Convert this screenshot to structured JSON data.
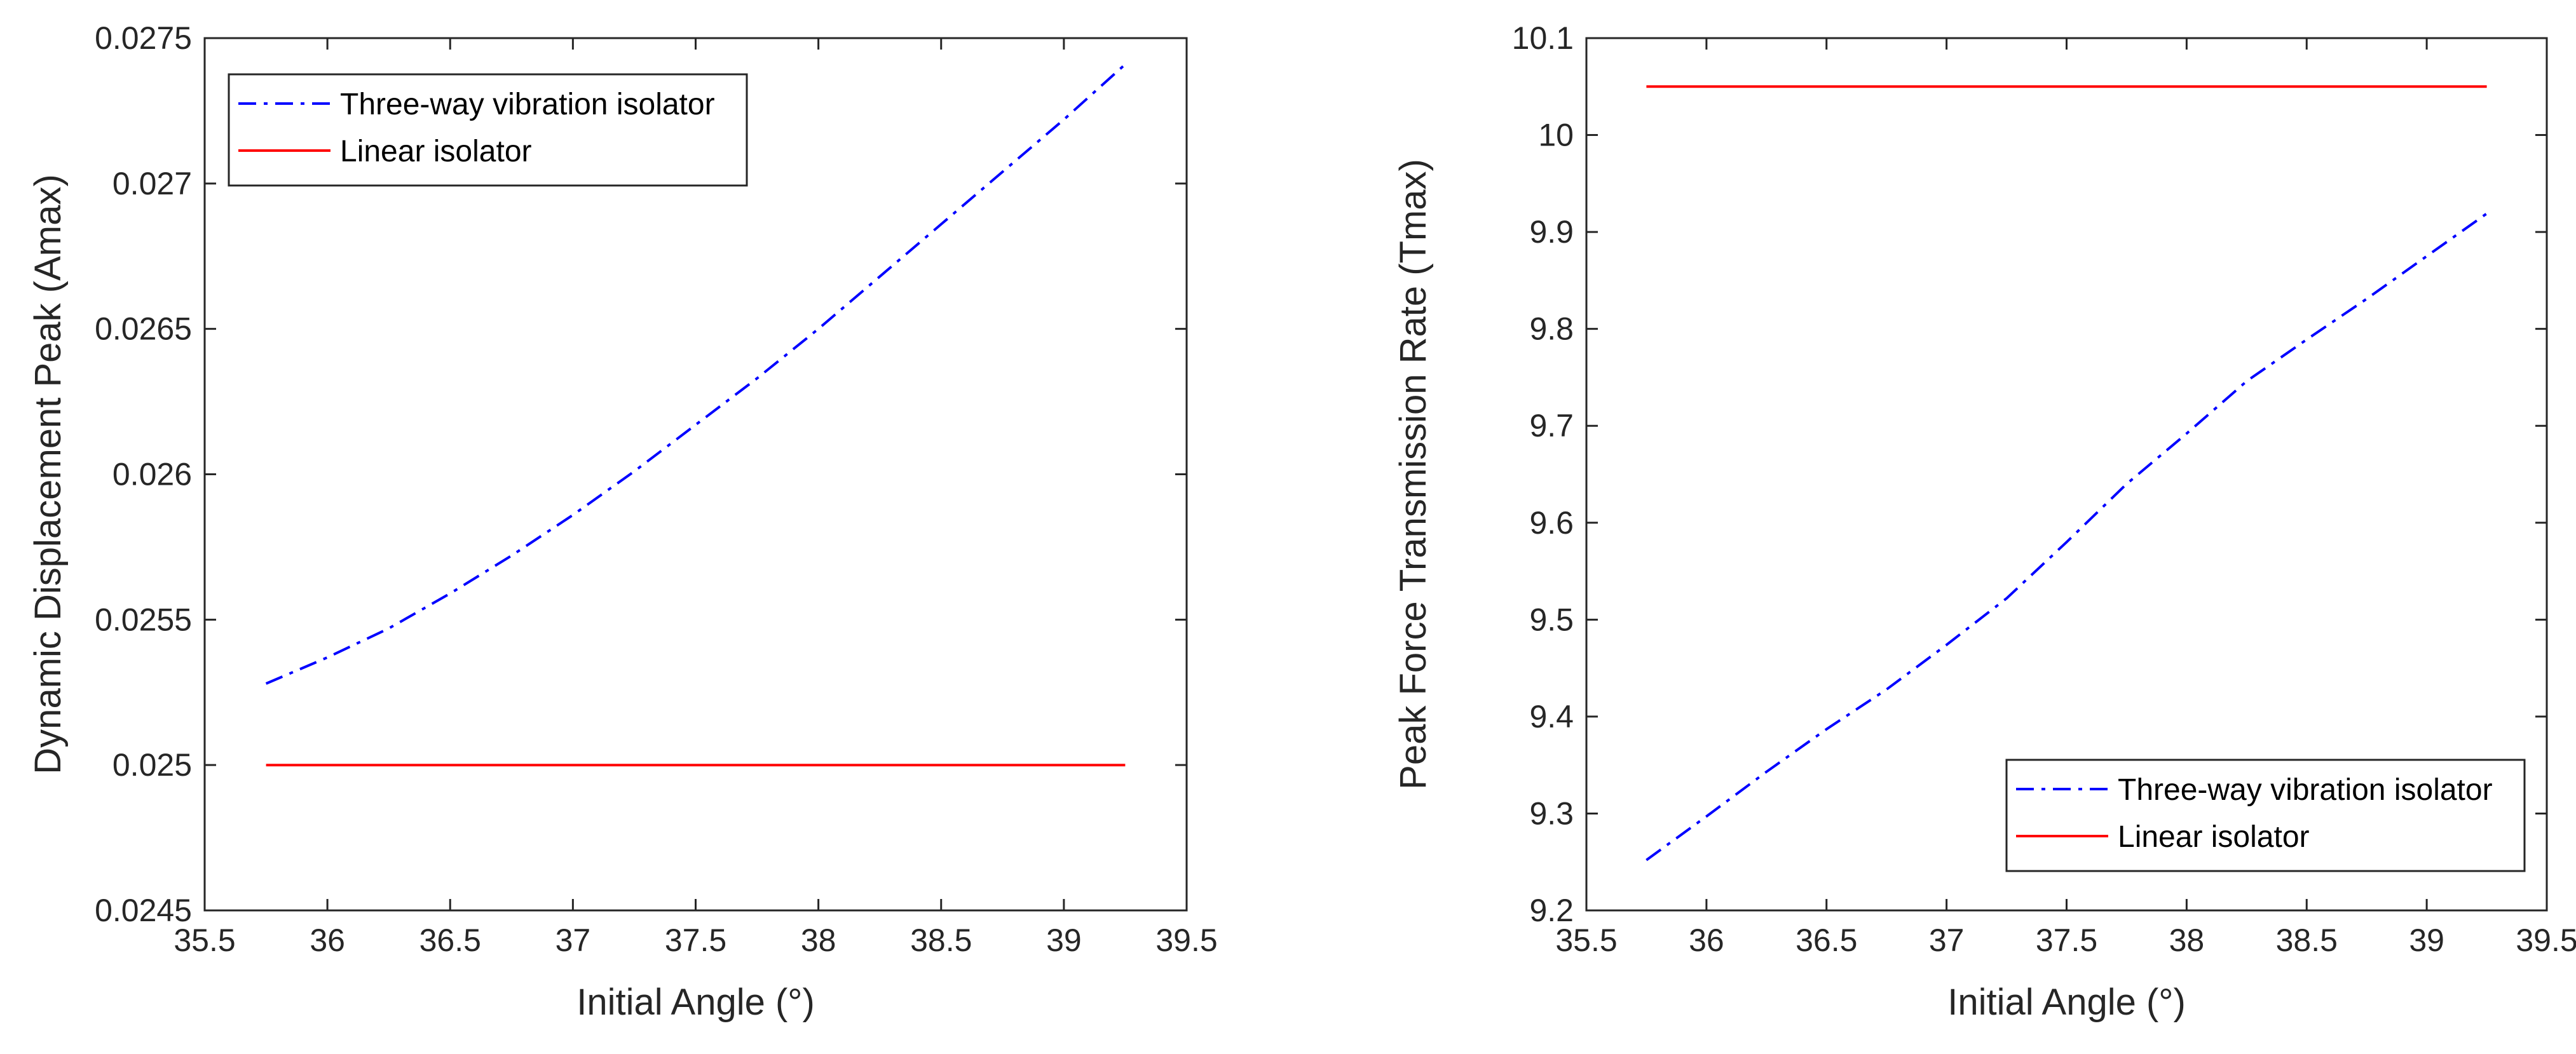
{
  "chart_data": [
    {
      "type": "line",
      "xlabel": "Initial Angle (°)",
      "ylabel": "Dynamic Displacement Peak (Amax)",
      "xlim": [
        35.5,
        39.5
      ],
      "ylim": [
        0.0245,
        0.0275
      ],
      "xticks": [
        35.5,
        36,
        36.5,
        37,
        37.5,
        38,
        38.5,
        39,
        39.5
      ],
      "yticks": [
        0.0245,
        0.025,
        0.0255,
        0.026,
        0.0265,
        0.027,
        0.0275
      ],
      "xtick_labels": [
        "35.5",
        "36",
        "36.5",
        "37",
        "37.5",
        "38",
        "38.5",
        "39",
        "39.5"
      ],
      "ytick_labels": [
        "0.0245",
        "0.025",
        "0.0255",
        "0.026",
        "0.0265",
        "0.027",
        "0.0275"
      ],
      "grid": false,
      "legend_position": "top-left",
      "series": [
        {
          "name": "Three-way vibration isolator",
          "color": "#0000ff",
          "line_style": "dash-dot",
          "x": [
            35.75,
            36.0,
            36.25,
            36.5,
            36.75,
            37.0,
            37.25,
            37.5,
            37.75,
            38.0,
            38.25,
            38.5,
            38.75,
            39.0,
            39.25
          ],
          "y": [
            0.02528,
            0.02537,
            0.02547,
            0.02559,
            0.02572,
            0.02586,
            0.02601,
            0.02617,
            0.02633,
            0.0265,
            0.02668,
            0.02686,
            0.02704,
            0.02722,
            0.02741
          ]
        },
        {
          "name": "Linear isolator",
          "color": "#ff0000",
          "line_style": "solid",
          "x": [
            35.75,
            39.25
          ],
          "y": [
            0.025,
            0.025
          ]
        }
      ]
    },
    {
      "type": "line",
      "xlabel": "Initial Angle (°)",
      "ylabel": "Peak Force Transmission Rate (Tmax)",
      "xlim": [
        35.5,
        39.5
      ],
      "ylim": [
        9.2,
        10.1
      ],
      "xticks": [
        35.5,
        36,
        36.5,
        37,
        37.5,
        38,
        38.5,
        39,
        39.5
      ],
      "yticks": [
        9.2,
        9.3,
        9.4,
        9.5,
        9.6,
        9.7,
        9.8,
        9.9,
        10,
        10.1
      ],
      "xtick_labels": [
        "35.5",
        "36",
        "36.5",
        "37",
        "37.5",
        "38",
        "38.5",
        "39",
        "39.5"
      ],
      "ytick_labels": [
        "9.2",
        "9.3",
        "9.4",
        "9.5",
        "9.6",
        "9.7",
        "9.8",
        "9.9",
        "10",
        "10.1"
      ],
      "grid": false,
      "legend_position": "bottom-right",
      "series": [
        {
          "name": "Three-way vibration isolator",
          "color": "#0000ff",
          "line_style": "dash-dot",
          "x": [
            35.75,
            36.0,
            36.25,
            36.5,
            36.75,
            37.0,
            37.25,
            37.5,
            37.75,
            38.0,
            38.25,
            38.5,
            38.75,
            39.0,
            39.25
          ],
          "y": [
            9.252,
            9.297,
            9.343,
            9.387,
            9.428,
            9.474,
            9.522,
            9.58,
            9.64,
            9.692,
            9.746,
            9.789,
            9.831,
            9.875,
            9.919
          ]
        },
        {
          "name": "Linear isolator",
          "color": "#ff0000",
          "line_style": "solid",
          "x": [
            35.75,
            39.25
          ],
          "y": [
            10.05,
            10.05
          ]
        }
      ]
    }
  ]
}
